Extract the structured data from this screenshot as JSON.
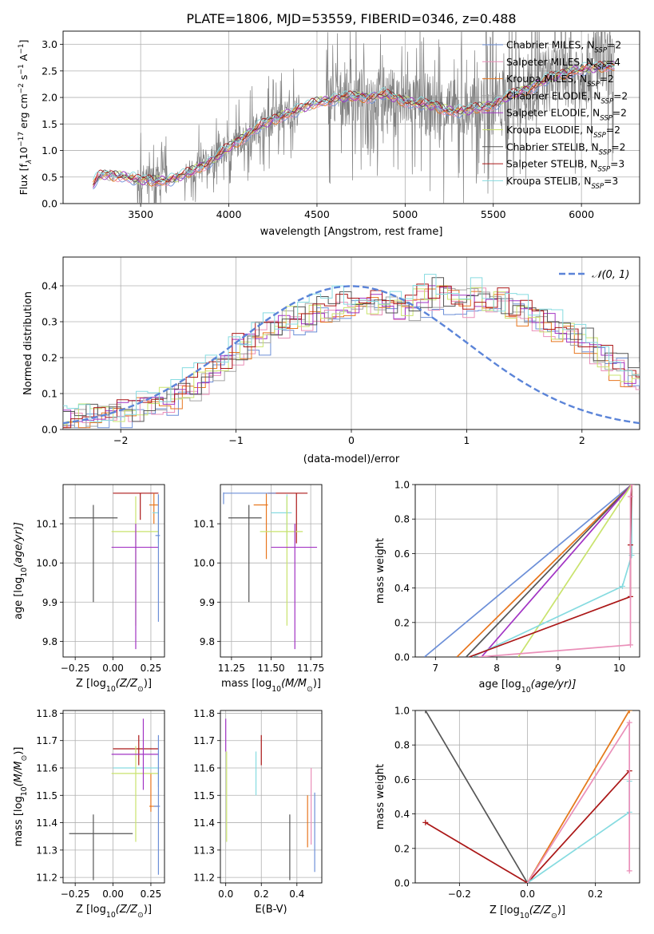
{
  "colors": {
    "miles_chabrier": "#6c8fd8",
    "miles_salpeter": "#ea8fb9",
    "miles_kroupa": "#e8761e",
    "elodie_chabrier": "#a3a3a3",
    "elodie_salpeter": "#a233c4",
    "elodie_kroupa": "#c9e36d",
    "stelib_chabrier": "#555555",
    "stelib_salpeter": "#ab1717",
    "stelib_kroupa": "#86dbe0",
    "gauss": "#5b84d8",
    "grid": "#b0b0b0"
  },
  "chart_data": [
    {
      "id": "spectrum",
      "type": "line",
      "title": "PLATE=1806, MJD=53559, FIBERID=0346, z=0.488",
      "xlabel": "wavelength [Angstrom, rest frame]",
      "ylabel_parts": [
        "Flux [f",
        "λ",
        "10",
        "−17",
        " erg cm",
        "−2",
        " s",
        "−1",
        " A",
        "−1",
        "]"
      ],
      "xlim": [
        3060,
        6330
      ],
      "ylim": [
        0,
        3.25
      ],
      "xticks": [
        "3500",
        "4000",
        "4500",
        "5000",
        "5500",
        "6000"
      ],
      "xtick_values": [
        3500,
        4000,
        4500,
        5000,
        5500,
        6000
      ],
      "yticks": [
        "0.0",
        "0.5",
        "1.0",
        "1.5",
        "2.0",
        "2.5",
        "3.0"
      ],
      "ytick_values": [
        0,
        0.5,
        1,
        1.5,
        2,
        2.5,
        3
      ],
      "x_range": [
        3230,
        6190
      ],
      "legend": [
        {
          "main": "Chabrier MILES, N",
          "sub": "SSP",
          "tail": "=2",
          "color": "miles_chabrier"
        },
        {
          "main": "Salpeter MILES, N",
          "sub": "SSP",
          "tail": "=4",
          "color": "miles_salpeter"
        },
        {
          "main": "Kroupa MILES, N",
          "sub": "SSP",
          "tail": "=2",
          "color": "miles_kroupa"
        },
        {
          "main": "Chabrier ELODIE, N",
          "sub": "SSP",
          "tail": "=2",
          "color": "elodie_chabrier"
        },
        {
          "main": "Salpeter ELODIE, N",
          "sub": "SSP",
          "tail": "=2",
          "color": "elodie_salpeter"
        },
        {
          "main": "Kroupa ELODIE, N",
          "sub": "SSP",
          "tail": "=2",
          "color": "elodie_kroupa"
        },
        {
          "main": "Chabrier STELIB, N",
          "sub": "SSP",
          "tail": "=2",
          "color": "stelib_chabrier"
        },
        {
          "main": "Salpeter STELIB, N",
          "sub": "SSP",
          "tail": "=3",
          "color": "stelib_salpeter"
        },
        {
          "main": "Kroupa STELIB, N",
          "sub": "SSP",
          "tail": "=3",
          "color": "stelib_kroupa"
        }
      ],
      "legend_position": "top-right",
      "continuum": [
        [
          3230,
          0.35
        ],
        [
          3260,
          0.5
        ],
        [
          3300,
          0.54
        ],
        [
          3400,
          0.52
        ],
        [
          3480,
          0.45
        ],
        [
          3600,
          0.42
        ],
        [
          3700,
          0.48
        ],
        [
          3780,
          0.58
        ],
        [
          3850,
          0.72
        ],
        [
          3920,
          0.85
        ],
        [
          4000,
          1.05
        ],
        [
          4100,
          1.3
        ],
        [
          4200,
          1.5
        ],
        [
          4300,
          1.65
        ],
        [
          4400,
          1.78
        ],
        [
          4500,
          1.9
        ],
        [
          4600,
          1.98
        ],
        [
          4700,
          2.0
        ],
        [
          4800,
          2.02
        ],
        [
          4880,
          2.05
        ],
        [
          4950,
          1.98
        ],
        [
          5050,
          1.9
        ],
        [
          5150,
          1.85
        ],
        [
          5250,
          1.75
        ],
        [
          5350,
          1.75
        ],
        [
          5450,
          1.82
        ],
        [
          5550,
          1.95
        ],
        [
          5650,
          2.1
        ],
        [
          5750,
          2.25
        ],
        [
          5850,
          2.4
        ],
        [
          5950,
          2.5
        ],
        [
          6050,
          2.55
        ],
        [
          6190,
          2.6
        ]
      ]
    },
    {
      "id": "residuals",
      "type": "histogram",
      "xlabel": "(data-model)/error",
      "ylabel": "Normed distribution",
      "xlim": [
        -2.5,
        2.5
      ],
      "ylim": [
        0,
        0.48
      ],
      "xticks": [
        "−2",
        "−1",
        "0",
        "1",
        "2"
      ],
      "xtick_values": [
        -2,
        -1,
        0,
        1,
        2
      ],
      "yticks": [
        "0.0",
        "0.1",
        "0.2",
        "0.3",
        "0.4"
      ],
      "ytick_values": [
        0,
        0.1,
        0.2,
        0.3,
        0.4
      ],
      "bin_width": 0.1,
      "gauss_label": "𝒩(0, 1)",
      "series_colors": [
        "miles_chabrier",
        "miles_salpeter",
        "miles_kroupa",
        "elodie_chabrier",
        "elodie_salpeter",
        "elodie_kroupa",
        "stelib_chabrier",
        "stelib_salpeter",
        "stelib_kroupa"
      ],
      "envelope": [
        0.02,
        0.03,
        0.03,
        0.035,
        0.04,
        0.045,
        0.05,
        0.06,
        0.07,
        0.085,
        0.1,
        0.12,
        0.14,
        0.16,
        0.19,
        0.22,
        0.24,
        0.26,
        0.28,
        0.3,
        0.31,
        0.32,
        0.33,
        0.34,
        0.35,
        0.36,
        0.36,
        0.35,
        0.35,
        0.34,
        0.34,
        0.36,
        0.38,
        0.37,
        0.36,
        0.36,
        0.37,
        0.36,
        0.35,
        0.34,
        0.33,
        0.32,
        0.3,
        0.28,
        0.26,
        0.24,
        0.22,
        0.2,
        0.18,
        0.16,
        0.15,
        0.14,
        0.13,
        0.12,
        0.11,
        0.1,
        0.1,
        0.09,
        0.09,
        0.08,
        0.08,
        0.08,
        0.08,
        0.07,
        0.07,
        0.07,
        0.07,
        0.06,
        0.06,
        0.06
      ],
      "legend_position": "top-right"
    },
    {
      "id": "age_vs_Z",
      "type": "errorbar",
      "xlabel_parts": [
        "Z [log",
        "10",
        "(Z/Z",
        "⊙",
        ")]"
      ],
      "ylabel_parts": [
        "age  [log",
        "10",
        "(age/yr)]"
      ],
      "xlim": [
        -0.33,
        0.34
      ],
      "ylim": [
        9.76,
        10.2
      ],
      "xticks": [
        "−0.25",
        "0.00",
        "0.25"
      ],
      "xtick_values": [
        -0.25,
        0,
        0.25
      ],
      "yticks": [
        "9.8",
        "9.9",
        "10.0",
        "10.1"
      ],
      "ytick_values": [
        9.8,
        9.9,
        10,
        10.1
      ],
      "points": [
        {
          "x": -0.13,
          "y": 10.115,
          "x0": -0.29,
          "x1": 0.03,
          "y0": 9.9,
          "y1": 10.148,
          "color": "stelib_chabrier"
        },
        {
          "x": 0.18,
          "y": 10.178,
          "x0": 0.0,
          "x1": 0.3,
          "y0": 10.11,
          "y1": 10.178,
          "color": "stelib_salpeter"
        },
        {
          "x": 0.27,
          "y": 10.148,
          "x0": 0.24,
          "x1": 0.3,
          "y0": 10.1,
          "y1": 10.178,
          "color": "miles_kroupa"
        },
        {
          "x": 0.3,
          "y": 10.128,
          "x0": 0.26,
          "x1": 0.3,
          "y0": 10.05,
          "y1": 10.175,
          "color": "stelib_kroupa"
        },
        {
          "x": 0.15,
          "y": 10.08,
          "x0": -0.01,
          "x1": 0.3,
          "y0": 9.84,
          "y1": 10.17,
          "color": "elodie_kroupa"
        },
        {
          "x": 0.15,
          "y": 10.04,
          "x0": -0.01,
          "x1": 0.3,
          "y0": 9.78,
          "y1": 10.1,
          "color": "elodie_salpeter"
        },
        {
          "x": 0.3,
          "y": 10.07,
          "x0": 0.28,
          "x1": 0.31,
          "y0": 9.85,
          "y1": 10.175,
          "color": "miles_chabrier"
        }
      ]
    },
    {
      "id": "age_vs_mass",
      "type": "errorbar",
      "xlabel_parts": [
        "mass [log",
        "10",
        "(M/M",
        "⊙",
        ")]"
      ],
      "ylabel_parts": [],
      "xlim": [
        11.18,
        11.82
      ],
      "ylim": [
        9.76,
        10.2
      ],
      "xticks": [
        "11.25",
        "11.50",
        "11.75"
      ],
      "xtick_values": [
        11.25,
        11.5,
        11.75
      ],
      "yticks": [
        "9.8",
        "9.9",
        "10.0",
        "10.1"
      ],
      "ytick_values": [
        9.8,
        9.9,
        10,
        10.1
      ],
      "points": [
        {
          "x": 11.36,
          "y": 10.115,
          "x0": 11.23,
          "x1": 11.44,
          "y0": 9.9,
          "y1": 10.148,
          "color": "stelib_chabrier"
        },
        {
          "x": 11.66,
          "y": 10.178,
          "x0": 11.48,
          "x1": 11.73,
          "y0": 10.05,
          "y1": 10.178,
          "color": "stelib_salpeter"
        },
        {
          "x": 11.47,
          "y": 10.148,
          "x0": 11.39,
          "x1": 11.48,
          "y0": 10.01,
          "y1": 10.178,
          "color": "miles_kroupa"
        },
        {
          "x": 11.6,
          "y": 10.128,
          "x0": 11.5,
          "x1": 11.63,
          "y0": 10.05,
          "y1": 10.175,
          "color": "stelib_kroupa"
        },
        {
          "x": 11.6,
          "y": 10.08,
          "x0": 11.43,
          "x1": 11.7,
          "y0": 9.84,
          "y1": 10.17,
          "color": "elodie_kroupa"
        },
        {
          "x": 11.65,
          "y": 10.04,
          "x0": 11.5,
          "x1": 11.79,
          "y0": 9.78,
          "y1": 10.1,
          "color": "elodie_salpeter"
        },
        {
          "x": 11.2,
          "y": 10.178,
          "x0": 11.2,
          "x1": 11.53,
          "y0": 10.15,
          "y1": 10.18,
          "color": "miles_chabrier"
        }
      ]
    },
    {
      "id": "mass_weight_vs_age",
      "type": "line",
      "xlabel_parts": [
        "age  [log",
        "10",
        "(age/yr)]"
      ],
      "ylabel": "mass weight",
      "xlim": [
        6.67,
        10.33
      ],
      "ylim": [
        0,
        1
      ],
      "xticks": [
        "7",
        "8",
        "9",
        "10"
      ],
      "xtick_values": [
        7,
        8,
        9,
        10
      ],
      "yticks": [
        "0.0",
        "0.2",
        "0.4",
        "0.6",
        "0.8",
        "1.0"
      ],
      "ytick_values": [
        0,
        0.2,
        0.4,
        0.6,
        0.8,
        1
      ],
      "series": [
        {
          "color": "miles_chabrier",
          "points": [
            [
              6.82,
              0
            ],
            [
              10.2,
              1
            ]
          ]
        },
        {
          "color": "miles_kroupa",
          "points": [
            [
              7.35,
              0
            ],
            [
              10.2,
              1
            ]
          ]
        },
        {
          "color": "stelib_chabrier",
          "points": [
            [
              7.5,
              0
            ],
            [
              10.2,
              1
            ]
          ]
        },
        {
          "color": "elodie_salpeter",
          "points": [
            [
              7.75,
              0
            ],
            [
              10.2,
              1
            ]
          ]
        },
        {
          "color": "elodie_kroupa",
          "points": [
            [
              8.35,
              0
            ],
            [
              10.2,
              1
            ]
          ]
        },
        {
          "color": "stelib_kroupa",
          "points": [
            [
              7.6,
              0
            ],
            [
              10.05,
              0.41
            ],
            [
              10.2,
              0.59
            ],
            [
              10.2,
              1
            ]
          ]
        },
        {
          "color": "stelib_salpeter",
          "points": [
            [
              7.55,
              0
            ],
            [
              10.18,
              0.35
            ],
            [
              10.18,
              0.65
            ],
            [
              10.2,
              1
            ]
          ]
        },
        {
          "color": "miles_salpeter",
          "points": [
            [
              7.7,
              0
            ],
            [
              10.18,
              0.07
            ],
            [
              10.18,
              0.93
            ],
            [
              10.2,
              1
            ]
          ]
        }
      ]
    },
    {
      "id": "mass_vs_Z",
      "type": "errorbar",
      "xlabel_parts": [
        "Z [log",
        "10",
        "(Z/Z",
        "⊙",
        ")]"
      ],
      "ylabel_parts": [
        "mass [log",
        "10",
        "(M/M",
        "⊙",
        ")]"
      ],
      "xlim": [
        -0.33,
        0.34
      ],
      "ylim": [
        11.18,
        11.81
      ],
      "xticks": [
        "−0.25",
        "0.00",
        "0.25"
      ],
      "xtick_values": [
        -0.25,
        0,
        0.25
      ],
      "yticks": [
        "11.2",
        "11.3",
        "11.4",
        "11.5",
        "11.6",
        "11.7",
        "11.8"
      ],
      "ytick_values": [
        11.2,
        11.3,
        11.4,
        11.5,
        11.6,
        11.7,
        11.8
      ],
      "points": [
        {
          "x": -0.13,
          "y": 11.36,
          "x0": -0.29,
          "x1": 0.13,
          "y0": 11.19,
          "y1": 11.43,
          "color": "stelib_chabrier"
        },
        {
          "x": 0.17,
          "y": 11.67,
          "x0": 0.0,
          "x1": 0.3,
          "y0": 11.61,
          "y1": 11.72,
          "color": "stelib_salpeter"
        },
        {
          "x": 0.25,
          "y": 11.46,
          "x0": 0.24,
          "x1": 0.3,
          "y0": 11.44,
          "y1": 11.58,
          "color": "miles_kroupa"
        },
        {
          "x": 0.3,
          "y": 11.6,
          "x0": 0.0,
          "x1": 0.3,
          "y0": 11.53,
          "y1": 11.66,
          "color": "stelib_kroupa"
        },
        {
          "x": 0.15,
          "y": 11.58,
          "x0": -0.01,
          "x1": 0.3,
          "y0": 11.33,
          "y1": 11.68,
          "color": "elodie_kroupa"
        },
        {
          "x": 0.2,
          "y": 11.65,
          "x0": -0.01,
          "x1": 0.3,
          "y0": 11.52,
          "y1": 11.78,
          "color": "elodie_salpeter"
        },
        {
          "x": 0.3,
          "y": 11.46,
          "x0": 0.27,
          "x1": 0.31,
          "y0": 11.21,
          "y1": 11.72,
          "color": "miles_chabrier"
        }
      ]
    },
    {
      "id": "mass_vs_ebv",
      "type": "errorbar",
      "xlabel": "E(B-V)",
      "xlim": [
        -0.03,
        0.54
      ],
      "ylim": [
        11.18,
        11.81
      ],
      "xticks": [
        "0.0",
        "0.2",
        "0.4"
      ],
      "xtick_values": [
        0,
        0.2,
        0.4
      ],
      "yticks": [
        "11.2",
        "11.3",
        "11.4",
        "11.5",
        "11.6",
        "11.7",
        "11.8"
      ],
      "ytick_values": [
        11.2,
        11.3,
        11.4,
        11.5,
        11.6,
        11.7,
        11.8
      ],
      "points": [
        {
          "x": 0.0,
          "y": 11.72,
          "y0": 11.66,
          "y1": 11.78,
          "color": "elodie_salpeter"
        },
        {
          "x": 0.005,
          "y": 11.5,
          "y0": 11.33,
          "y1": 11.66,
          "color": "elodie_kroupa"
        },
        {
          "x": 0.17,
          "y": 11.58,
          "y0": 11.5,
          "y1": 11.66,
          "color": "stelib_kroupa"
        },
        {
          "x": 0.2,
          "y": 11.67,
          "y0": 11.61,
          "y1": 11.72,
          "color": "stelib_salpeter"
        },
        {
          "x": 0.36,
          "y": 11.31,
          "y0": 11.19,
          "y1": 11.43,
          "color": "stelib_chabrier"
        },
        {
          "x": 0.46,
          "y": 11.4,
          "y0": 11.31,
          "y1": 11.5,
          "color": "miles_kroupa"
        },
        {
          "x": 0.48,
          "y": 11.46,
          "y0": 11.32,
          "y1": 11.6,
          "color": "miles_salpeter"
        },
        {
          "x": 0.5,
          "y": 11.37,
          "y0": 11.22,
          "y1": 11.51,
          "color": "miles_chabrier"
        }
      ]
    },
    {
      "id": "mass_weight_vs_Z",
      "type": "line",
      "xlabel_parts": [
        "Z [log",
        "10",
        "(Z/Z",
        "⊙",
        ")]"
      ],
      "ylabel": "mass weight",
      "xlim": [
        -0.33,
        0.33
      ],
      "ylim": [
        0,
        1
      ],
      "xticks": [
        "−0.2",
        "0.0",
        "0.2"
      ],
      "xtick_values": [
        -0.2,
        0,
        0.2
      ],
      "yticks": [
        "0.0",
        "0.2",
        "0.4",
        "0.6",
        "0.8",
        "1.0"
      ],
      "ytick_values": [
        0,
        0.2,
        0.4,
        0.6,
        0.8,
        1
      ],
      "series": [
        {
          "color": "stelib_chabrier",
          "points": [
            [
              -0.3,
              1
            ],
            [
              0,
              0
            ]
          ]
        },
        {
          "color": "stelib_salpeter",
          "points": [
            [
              -0.3,
              0.35
            ],
            [
              0,
              0
            ],
            [
              0.3,
              0.65
            ]
          ]
        },
        {
          "color": "elodie_kroupa",
          "points": [
            [
              0,
              0
            ],
            [
              0.3,
              1
            ]
          ]
        },
        {
          "color": "miles_kroupa",
          "points": [
            [
              0,
              0
            ],
            [
              0.3,
              1
            ]
          ]
        },
        {
          "color": "stelib_kroupa",
          "points": [
            [
              0,
              0
            ],
            [
              0.3,
              0.41
            ],
            [
              0.3,
              0.59
            ]
          ]
        },
        {
          "color": "miles_salpeter",
          "points": [
            [
              0,
              0
            ],
            [
              0.3,
              0.93
            ],
            [
              0.3,
              0.07
            ]
          ]
        }
      ]
    }
  ]
}
